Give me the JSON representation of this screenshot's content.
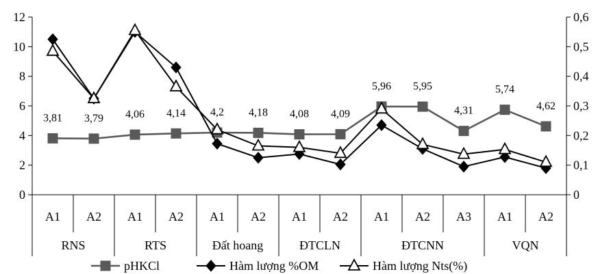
{
  "chart_data": {
    "type": "line",
    "categories": [
      "A1",
      "A2",
      "A1",
      "A2",
      "A1",
      "A2",
      "A1",
      "A2",
      "A1",
      "A2",
      "A3",
      "A1",
      "A2"
    ],
    "groups": [
      {
        "label": "RNS",
        "count": 2
      },
      {
        "label": "RTS",
        "count": 2
      },
      {
        "label": "Đất hoang",
        "count": 2
      },
      {
        "label": "ĐTCLN",
        "count": 2
      },
      {
        "label": "ĐTCNN",
        "count": 3
      },
      {
        "label": "VQN",
        "count": 2
      }
    ],
    "left_axis": {
      "ylim": [
        0,
        12
      ],
      "ticks": [
        "0",
        "2",
        "4",
        "6",
        "8",
        "10",
        "12"
      ]
    },
    "right_axis": {
      "ylim": [
        0,
        0.6
      ],
      "ticks": [
        "0",
        "0,1",
        "0,2",
        "0,3",
        "0,4",
        "0,5",
        "0,6"
      ]
    },
    "series": [
      {
        "name": "pHKCl",
        "axis": "left",
        "marker": "square",
        "color": "#595959",
        "values": [
          3.81,
          3.79,
          4.06,
          4.14,
          4.2,
          4.18,
          4.08,
          4.09,
          5.96,
          5.95,
          4.31,
          5.74,
          4.62
        ],
        "labels": [
          "3,81",
          "3,79",
          "4,06",
          "4,14",
          "4,2",
          "4,18",
          "4,08",
          "4,09",
          "5,96",
          "5,95",
          "4,31",
          "5,74",
          "4,62"
        ]
      },
      {
        "name": "Hàm lượng %OM",
        "axis": "left",
        "marker": "diamond",
        "color": "#000000",
        "values": [
          10.5,
          6.5,
          11.0,
          8.6,
          3.45,
          2.5,
          2.75,
          2.05,
          4.7,
          3.1,
          1.9,
          2.55,
          1.8
        ]
      },
      {
        "name": "Hàm lượng Nts(%)",
        "axis": "right",
        "marker": "triangle",
        "color": "#000000",
        "values": [
          0.485,
          0.325,
          0.555,
          0.365,
          0.22,
          0.165,
          0.16,
          0.14,
          0.29,
          0.17,
          0.137,
          0.153,
          0.11
        ]
      }
    ],
    "legend_position": "bottom",
    "grid": false
  }
}
